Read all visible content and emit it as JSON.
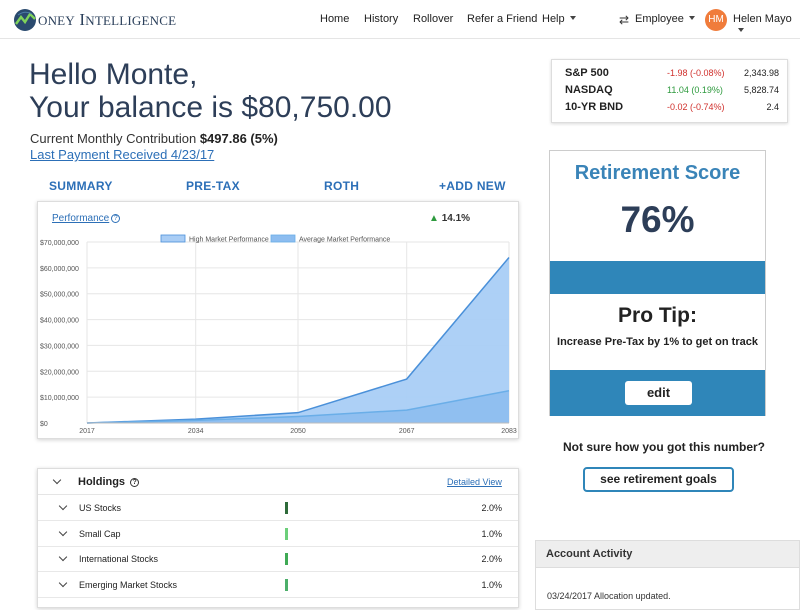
{
  "brand": {
    "logo_initial": "M",
    "logo_rest_first": "ONEY",
    "logo_word2_initial": "I",
    "logo_word2_rest": "NTELLIGENCE"
  },
  "nav": {
    "items": [
      "Home",
      "History",
      "Rollover",
      "Refer a Friend",
      "Help"
    ],
    "role_label": "Employee",
    "user_initials": "HM",
    "user_name": "Helen Mayo"
  },
  "greeting": {
    "line1": "Hello Monte,",
    "line2": "Your balance is $80,750.00",
    "contribution_label": "Current Monthly Contribution",
    "contribution_value": "$497.86 (5%)",
    "last_payment": "Last Payment Received 4/23/17"
  },
  "tabs": [
    "SUMMARY",
    "PRE-TAX",
    "ROTH",
    "+ADD NEW"
  ],
  "performance": {
    "link_label": "Performance",
    "change": "14.1%"
  },
  "chart_data": {
    "type": "area",
    "x": [
      2017,
      2034,
      2050,
      2067,
      2083
    ],
    "ytick_labels": [
      "$0",
      "$10,000,000",
      "$20,000,000",
      "$30,000,000",
      "$40,000,000",
      "$50,000,000",
      "$60,000,000",
      "$70,000,000"
    ],
    "ylim": [
      0,
      70000000
    ],
    "yticks": [
      0,
      10000000,
      20000000,
      30000000,
      40000000,
      50000000,
      60000000,
      70000000
    ],
    "legend_placement": "top-center",
    "grid": true,
    "series": [
      {
        "name": "High Market Performance",
        "color": "#4a90d9",
        "fill": "#a9cdf5",
        "values": [
          0,
          1500000,
          4000000,
          17000000,
          64000000
        ]
      },
      {
        "name": "Average Market Performance",
        "color": "#6aaee8",
        "fill": "#8dbdf0",
        "values": [
          0,
          1000000,
          2500000,
          5000000,
          12500000
        ]
      }
    ]
  },
  "holdings": {
    "title": "Holdings",
    "detail_link": "Detailed View",
    "rows": [
      {
        "name": "US Stocks",
        "pct": "2.0%",
        "bar_color": "#2e6b3a"
      },
      {
        "name": "Small Cap",
        "pct": "1.0%",
        "bar_color": "#6ccf7a"
      },
      {
        "name": "International Stocks",
        "pct": "2.0%",
        "bar_color": "#3faa55"
      },
      {
        "name": "Emerging Market Stocks",
        "pct": "1.0%",
        "bar_color": "#4caf6a"
      }
    ]
  },
  "ticker": [
    {
      "name": "S&P 500",
      "change": "-1.98 (-0.08%)",
      "value": "2,343.98",
      "color": "#d0312d"
    },
    {
      "name": "NASDAQ",
      "change": "11.04 (0.19%)",
      "value": "5,828.74",
      "color": "#2e9a3e"
    },
    {
      "name": "10-YR BND",
      "change": "-0.02 (-0.74%)",
      "value": "2.4",
      "color": "#d0312d"
    }
  ],
  "score": {
    "title": "Retirement Score",
    "value": "76%",
    "tip_title": "Pro Tip:",
    "tip_text": "Increase Pre-Tax by 1% to get on track",
    "edit_label": "edit"
  },
  "goals": {
    "prompt": "Not sure how you got this number?",
    "button": "see retirement goals"
  },
  "activity": {
    "title": "Account Activity",
    "items": [
      "03/24/2017 Allocation updated."
    ]
  }
}
